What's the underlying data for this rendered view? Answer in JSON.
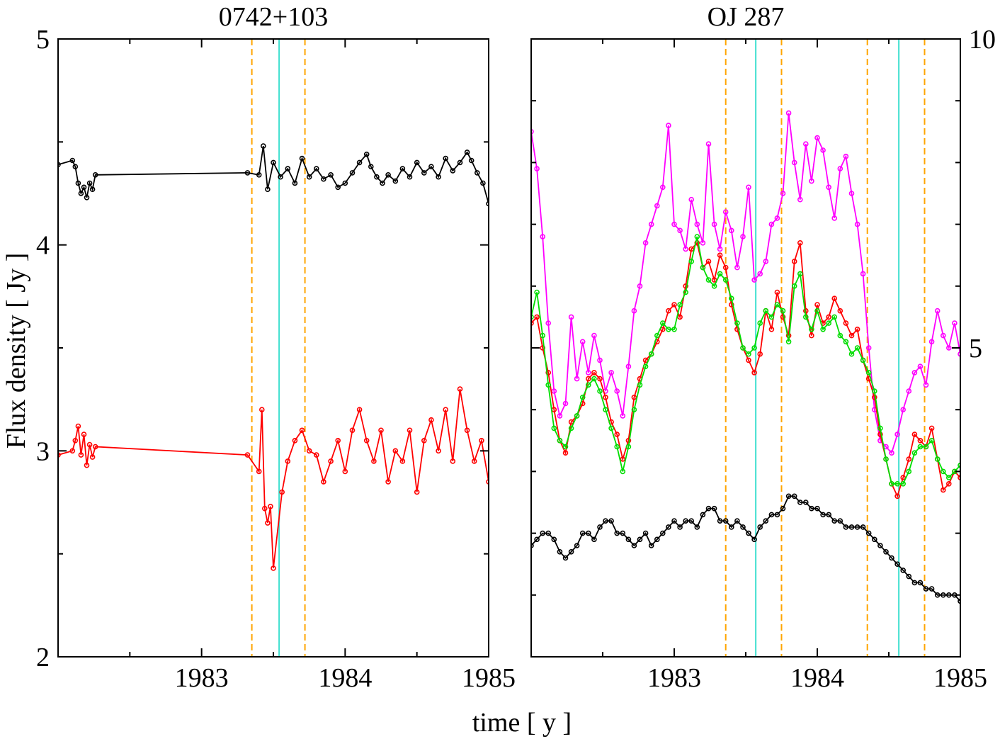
{
  "figure": {
    "xlabel": "time [ y ]",
    "ylabel": "Flux density [ Jy ]"
  },
  "chart_data": [
    {
      "type": "line",
      "title": "0742+103",
      "xlabel": "time [ y ]",
      "ylabel": "Flux density [ Jy ]",
      "xlim": [
        1982,
        1985
      ],
      "ylim": [
        2,
        5
      ],
      "x_ticks": [
        1983,
        1984,
        1985
      ],
      "x_tick_labels": [
        "1983",
        "1984",
        "1985"
      ],
      "y_ticks": [
        2,
        3,
        4,
        5
      ],
      "y_tick_labels": [
        "2",
        "3",
        "4",
        "5"
      ],
      "grid": false,
      "vlines": [
        {
          "x": 1983.35,
          "color": "#ffa500",
          "style": "dashed"
        },
        {
          "x": 1983.54,
          "color": "#40e0d0",
          "style": "solid"
        },
        {
          "x": 1983.72,
          "color": "#ffa500",
          "style": "dashed"
        }
      ],
      "series": [
        {
          "color": "#000000",
          "x": [
            1982.0,
            1982.1,
            1982.12,
            1982.14,
            1982.16,
            1982.18,
            1982.2,
            1982.22,
            1982.24,
            1982.26,
            1983.32,
            1983.4,
            1983.43,
            1983.46,
            1983.5,
            1983.55,
            1983.6,
            1983.65,
            1983.7,
            1983.75,
            1983.8,
            1983.85,
            1983.9,
            1983.95,
            1984.0,
            1984.05,
            1984.1,
            1984.15,
            1984.18,
            1984.22,
            1984.26,
            1984.3,
            1984.35,
            1984.4,
            1984.45,
            1984.5,
            1984.55,
            1984.6,
            1984.65,
            1984.7,
            1984.75,
            1984.8,
            1984.85,
            1984.88,
            1984.92,
            1984.96,
            1985.0
          ],
          "y": [
            4.39,
            4.41,
            4.38,
            4.3,
            4.25,
            4.28,
            4.23,
            4.3,
            4.27,
            4.34,
            4.35,
            4.34,
            4.48,
            4.27,
            4.4,
            4.33,
            4.37,
            4.3,
            4.42,
            4.33,
            4.37,
            4.32,
            4.34,
            4.28,
            4.3,
            4.35,
            4.4,
            4.44,
            4.38,
            4.33,
            4.3,
            4.34,
            4.31,
            4.37,
            4.33,
            4.4,
            4.35,
            4.38,
            4.33,
            4.42,
            4.36,
            4.4,
            4.45,
            4.41,
            4.35,
            4.3,
            4.2
          ]
        },
        {
          "color": "#ff0000",
          "x": [
            1982.0,
            1982.1,
            1982.12,
            1982.14,
            1982.16,
            1982.18,
            1982.2,
            1982.22,
            1982.24,
            1982.26,
            1983.32,
            1983.4,
            1983.42,
            1983.44,
            1983.46,
            1983.48,
            1983.5,
            1983.56,
            1983.6,
            1983.65,
            1983.7,
            1983.75,
            1983.8,
            1983.85,
            1983.9,
            1983.95,
            1984.0,
            1984.05,
            1984.1,
            1984.15,
            1984.2,
            1984.25,
            1984.3,
            1984.35,
            1984.4,
            1984.45,
            1984.5,
            1984.55,
            1984.6,
            1984.65,
            1984.7,
            1984.75,
            1984.8,
            1984.85,
            1984.9,
            1984.95,
            1985.0
          ],
          "y": [
            2.98,
            3.0,
            3.05,
            3.12,
            2.98,
            3.08,
            2.93,
            3.03,
            2.97,
            3.02,
            2.98,
            2.9,
            3.2,
            2.72,
            2.65,
            2.73,
            2.43,
            2.8,
            2.95,
            3.05,
            3.1,
            3.0,
            2.98,
            2.85,
            2.95,
            3.05,
            2.9,
            3.1,
            3.2,
            3.05,
            2.95,
            3.1,
            2.85,
            3.0,
            2.95,
            3.1,
            2.8,
            3.05,
            3.15,
            3.0,
            3.2,
            2.95,
            3.3,
            3.1,
            2.95,
            3.05,
            2.85
          ]
        }
      ]
    },
    {
      "type": "line",
      "title": "OJ 287",
      "xlabel": "time [ y ]",
      "xlim": [
        1982,
        1985
      ],
      "ylim": [
        0,
        10
      ],
      "x_ticks": [
        1983,
        1984,
        1985
      ],
      "x_tick_labels": [
        "1983",
        "1984",
        "1985"
      ],
      "y_ticks": [
        5,
        10
      ],
      "y_tick_labels": [
        "5",
        "10"
      ],
      "y_axis_side": "right",
      "grid": false,
      "vlines": [
        {
          "x": 1983.36,
          "color": "#ffa500",
          "style": "dashed"
        },
        {
          "x": 1983.57,
          "color": "#40e0d0",
          "style": "solid"
        },
        {
          "x": 1983.75,
          "color": "#ffa500",
          "style": "dashed"
        },
        {
          "x": 1984.35,
          "color": "#ffa500",
          "style": "dashed"
        },
        {
          "x": 1984.57,
          "color": "#40e0d0",
          "style": "solid"
        },
        {
          "x": 1984.75,
          "color": "#ffa500",
          "style": "dashed"
        }
      ],
      "series": [
        {
          "color": "#ff00ff",
          "x": [
            1982.0,
            1982.04,
            1982.08,
            1982.12,
            1982.16,
            1982.2,
            1982.24,
            1982.28,
            1982.32,
            1982.36,
            1982.4,
            1982.44,
            1982.48,
            1982.52,
            1982.56,
            1982.6,
            1982.64,
            1982.68,
            1982.72,
            1982.76,
            1982.8,
            1982.84,
            1982.88,
            1982.92,
            1982.96,
            1983.0,
            1983.04,
            1983.08,
            1983.12,
            1983.16,
            1983.2,
            1983.24,
            1983.28,
            1983.32,
            1983.36,
            1983.4,
            1983.44,
            1983.48,
            1983.52,
            1983.56,
            1983.6,
            1983.64,
            1983.68,
            1983.72,
            1983.76,
            1983.8,
            1983.84,
            1983.88,
            1983.92,
            1983.96,
            1984.0,
            1984.04,
            1984.08,
            1984.12,
            1984.16,
            1984.2,
            1984.24,
            1984.28,
            1984.32,
            1984.36,
            1984.4,
            1984.44,
            1984.48,
            1984.52,
            1984.56,
            1984.6,
            1984.64,
            1984.68,
            1984.72,
            1984.76,
            1984.8,
            1984.84,
            1984.88,
            1984.92,
            1984.96,
            1985.0
          ],
          "y": [
            8.5,
            7.9,
            6.8,
            5.4,
            4.3,
            3.9,
            4.1,
            5.5,
            4.5,
            5.1,
            4.6,
            5.2,
            4.8,
            4.3,
            4.6,
            4.3,
            3.9,
            4.7,
            5.6,
            6.0,
            6.7,
            7.0,
            7.3,
            7.6,
            8.6,
            7.0,
            6.9,
            6.6,
            7.4,
            7.0,
            6.7,
            8.3,
            7.0,
            6.6,
            7.2,
            6.9,
            6.3,
            6.8,
            7.6,
            6.1,
            6.2,
            6.4,
            7.0,
            7.1,
            7.5,
            8.8,
            8.0,
            7.4,
            8.3,
            7.7,
            8.4,
            8.2,
            7.6,
            7.1,
            7.9,
            8.1,
            7.5,
            7.0,
            6.2,
            5.0,
            4.0,
            3.5,
            3.4,
            3.3,
            3.6,
            4.0,
            4.3,
            4.6,
            4.7,
            4.4,
            5.1,
            5.6,
            5.2,
            5.0,
            5.4,
            4.9
          ]
        },
        {
          "color": "#ff0000",
          "x": [
            1982.0,
            1982.04,
            1982.08,
            1982.12,
            1982.16,
            1982.2,
            1982.24,
            1982.28,
            1982.32,
            1982.36,
            1982.4,
            1982.44,
            1982.48,
            1982.52,
            1982.56,
            1982.6,
            1982.64,
            1982.68,
            1982.72,
            1982.76,
            1982.8,
            1982.84,
            1982.88,
            1982.92,
            1982.96,
            1983.0,
            1983.04,
            1983.08,
            1983.12,
            1983.16,
            1983.2,
            1983.24,
            1983.28,
            1983.32,
            1983.36,
            1983.4,
            1983.44,
            1983.48,
            1983.52,
            1983.56,
            1983.6,
            1983.64,
            1983.68,
            1983.72,
            1983.76,
            1983.8,
            1983.84,
            1983.88,
            1983.92,
            1983.96,
            1984.0,
            1984.04,
            1984.08,
            1984.12,
            1984.16,
            1984.2,
            1984.24,
            1984.28,
            1984.32,
            1984.36,
            1984.4,
            1984.44,
            1984.48,
            1984.52,
            1984.56,
            1984.6,
            1984.64,
            1984.68,
            1984.72,
            1984.76,
            1984.8,
            1984.84,
            1984.88,
            1984.92,
            1984.96,
            1985.0
          ],
          "y": [
            5.4,
            5.5,
            5.0,
            4.6,
            4.0,
            3.5,
            3.3,
            3.8,
            3.9,
            4.1,
            4.5,
            4.6,
            4.5,
            4.2,
            3.8,
            3.6,
            3.2,
            3.5,
            4.2,
            4.5,
            4.8,
            4.9,
            5.1,
            5.3,
            5.6,
            5.7,
            5.5,
            6.0,
            6.6,
            6.7,
            6.3,
            6.4,
            6.1,
            6.5,
            6.3,
            5.7,
            5.3,
            5.0,
            4.8,
            4.6,
            4.9,
            5.6,
            5.3,
            5.9,
            5.5,
            5.2,
            6.4,
            6.7,
            5.6,
            5.2,
            5.7,
            5.4,
            5.5,
            5.8,
            5.6,
            5.4,
            5.2,
            5.3,
            4.8,
            4.5,
            4.2,
            3.6,
            3.2,
            2.8,
            2.6,
            2.9,
            3.2,
            3.6,
            3.5,
            3.4,
            3.7,
            3.2,
            2.7,
            2.8,
            3.0,
            2.9
          ]
        },
        {
          "color": "#00dd00",
          "x": [
            1982.0,
            1982.04,
            1982.08,
            1982.12,
            1982.16,
            1982.2,
            1982.24,
            1982.28,
            1982.32,
            1982.36,
            1982.4,
            1982.44,
            1982.48,
            1982.52,
            1982.56,
            1982.6,
            1982.64,
            1982.68,
            1982.72,
            1982.76,
            1982.8,
            1982.84,
            1982.88,
            1982.92,
            1982.96,
            1983.0,
            1983.04,
            1983.08,
            1983.12,
            1983.16,
            1983.2,
            1983.24,
            1983.28,
            1983.32,
            1983.36,
            1983.4,
            1983.44,
            1983.48,
            1983.52,
            1983.56,
            1983.6,
            1983.64,
            1983.68,
            1983.72,
            1983.76,
            1983.8,
            1983.84,
            1983.88,
            1983.92,
            1983.96,
            1984.0,
            1984.04,
            1984.08,
            1984.12,
            1984.16,
            1984.2,
            1984.24,
            1984.28,
            1984.32,
            1984.36,
            1984.4,
            1984.44,
            1984.48,
            1984.52,
            1984.56,
            1984.6,
            1984.64,
            1984.68,
            1984.72,
            1984.76,
            1984.8,
            1984.84,
            1984.88,
            1984.92,
            1984.96,
            1985.0
          ],
          "y": [
            5.5,
            5.9,
            5.2,
            4.4,
            3.7,
            3.5,
            3.4,
            3.7,
            3.9,
            4.2,
            4.4,
            4.5,
            4.3,
            4.0,
            3.7,
            3.4,
            3.0,
            3.4,
            4.0,
            4.4,
            4.7,
            4.9,
            5.2,
            5.4,
            5.3,
            5.3,
            5.7,
            5.9,
            6.4,
            6.8,
            6.3,
            6.1,
            6.0,
            6.2,
            6.1,
            5.8,
            5.4,
            5.0,
            4.9,
            5.0,
            5.4,
            5.6,
            5.5,
            5.7,
            5.6,
            5.1,
            6.0,
            6.2,
            5.5,
            5.3,
            5.6,
            5.3,
            5.4,
            5.5,
            5.2,
            5.1,
            4.9,
            5.0,
            4.8,
            4.6,
            4.3,
            3.7,
            3.2,
            2.8,
            2.8,
            2.8,
            3.0,
            3.3,
            3.4,
            3.4,
            3.5,
            3.2,
            3.0,
            2.9,
            3.0,
            3.1
          ]
        },
        {
          "color": "#000000",
          "x": [
            1982.0,
            1982.04,
            1982.08,
            1982.12,
            1982.16,
            1982.2,
            1982.24,
            1982.28,
            1982.32,
            1982.36,
            1982.4,
            1982.44,
            1982.48,
            1982.52,
            1982.56,
            1982.6,
            1982.64,
            1982.68,
            1982.72,
            1982.76,
            1982.8,
            1982.84,
            1982.88,
            1982.92,
            1982.96,
            1983.0,
            1983.04,
            1983.08,
            1983.12,
            1983.16,
            1983.2,
            1983.24,
            1983.28,
            1983.32,
            1983.36,
            1983.4,
            1983.44,
            1983.48,
            1983.52,
            1983.56,
            1983.6,
            1983.64,
            1983.68,
            1983.72,
            1983.76,
            1983.8,
            1983.84,
            1983.88,
            1983.92,
            1983.96,
            1984.0,
            1984.04,
            1984.08,
            1984.12,
            1984.16,
            1984.2,
            1984.24,
            1984.28,
            1984.32,
            1984.36,
            1984.4,
            1984.44,
            1984.48,
            1984.52,
            1984.56,
            1984.6,
            1984.64,
            1984.68,
            1984.72,
            1984.76,
            1984.8,
            1984.84,
            1984.88,
            1984.92,
            1984.96,
            1985.0
          ],
          "y": [
            1.8,
            1.9,
            2.0,
            2.0,
            1.9,
            1.7,
            1.6,
            1.7,
            1.8,
            2.0,
            2.0,
            1.9,
            2.1,
            2.2,
            2.2,
            2.0,
            2.0,
            1.9,
            1.8,
            1.9,
            2.0,
            1.8,
            1.9,
            2.0,
            2.1,
            2.2,
            2.1,
            2.2,
            2.2,
            2.1,
            2.3,
            2.4,
            2.4,
            2.2,
            2.2,
            2.1,
            2.2,
            2.1,
            2.0,
            1.9,
            2.1,
            2.2,
            2.3,
            2.3,
            2.4,
            2.6,
            2.6,
            2.5,
            2.5,
            2.4,
            2.4,
            2.3,
            2.3,
            2.2,
            2.2,
            2.1,
            2.1,
            2.1,
            2.1,
            2.0,
            1.9,
            1.8,
            1.7,
            1.6,
            1.5,
            1.4,
            1.3,
            1.2,
            1.2,
            1.1,
            1.1,
            1.0,
            1.0,
            1.0,
            1.0,
            0.9
          ]
        }
      ]
    }
  ]
}
